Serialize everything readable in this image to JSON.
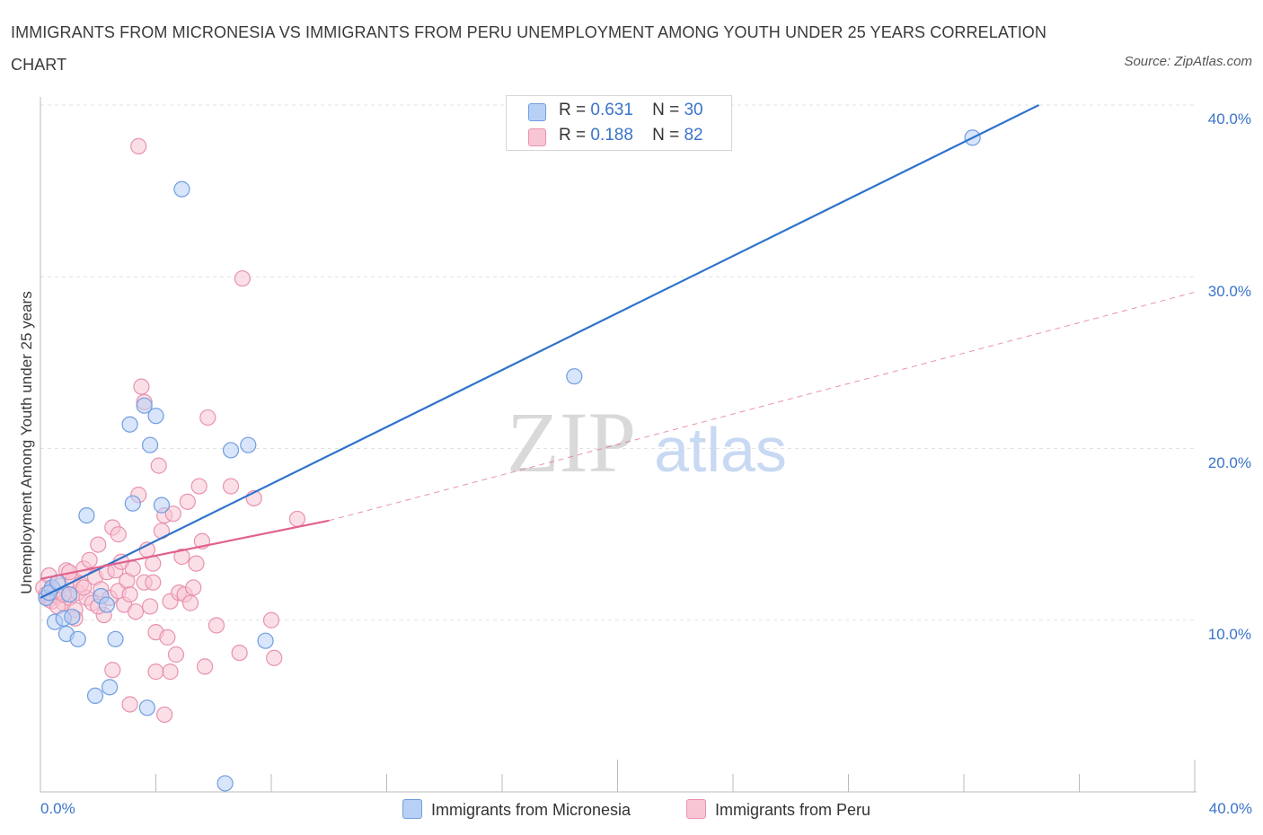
{
  "title": "IMMIGRANTS FROM MICRONESIA VS IMMIGRANTS FROM PERU UNEMPLOYMENT AMONG YOUTH UNDER 25 YEARS CORRELATION CHART",
  "source": "Source: ZipAtlas.com",
  "watermark": {
    "part1": "ZIP",
    "part2": "atlas"
  },
  "legend": {
    "r_label": "R =",
    "n_label": "N =",
    "micronesia": {
      "r": "0.631",
      "n": "30"
    },
    "peru": {
      "r": "0.188",
      "n": "82"
    }
  },
  "colors": {
    "micronesia_fill": "#b8d0f5",
    "micronesia_stroke": "#6f9ee0",
    "micronesia_line": "#2f73cc",
    "peru_fill": "#f8c5d4",
    "peru_stroke": "#e892ad",
    "peru_line": "#e0628d",
    "grid": "#e3e3e3",
    "tick_text": "#3a74c9"
  },
  "chart_data": {
    "type": "scatter",
    "title": "IMMIGRANTS FROM MICRONESIA VS IMMIGRANTS FROM PERU UNEMPLOYMENT AMONG YOUTH UNDER 25 YEARS CORRELATION CHART",
    "xlabel": "",
    "ylabel": "Unemployment Among Youth under 25 years",
    "xlim": [
      0,
      40
    ],
    "ylim": [
      0,
      40
    ],
    "x_tick_labels": [
      "0.0%",
      "40.0%"
    ],
    "y_ticks": [
      10,
      20,
      30,
      40
    ],
    "y_tick_labels": [
      "10.0%",
      "20.0%",
      "30.0%",
      "40.0%"
    ],
    "grid": true,
    "legend_position": "bottom",
    "series": [
      {
        "name": "Immigrants from Micronesia",
        "r": 0.631,
        "n": 30,
        "points": [
          [
            0.2,
            11.3
          ],
          [
            0.4,
            11.9
          ],
          [
            0.5,
            9.9
          ],
          [
            0.8,
            10.1
          ],
          [
            0.9,
            9.2
          ],
          [
            1.0,
            11.5
          ],
          [
            1.1,
            10.2
          ],
          [
            1.3,
            8.9
          ],
          [
            1.6,
            16.1
          ],
          [
            1.9,
            5.6
          ],
          [
            2.1,
            11.4
          ],
          [
            2.3,
            10.9
          ],
          [
            2.4,
            6.1
          ],
          [
            2.6,
            8.9
          ],
          [
            3.1,
            21.4
          ],
          [
            3.2,
            16.8
          ],
          [
            3.6,
            22.5
          ],
          [
            3.7,
            4.9
          ],
          [
            3.8,
            20.2
          ],
          [
            4.0,
            21.9
          ],
          [
            4.2,
            16.7
          ],
          [
            4.9,
            35.1
          ],
          [
            6.4,
            0.5
          ],
          [
            6.6,
            19.9
          ],
          [
            7.2,
            20.2
          ],
          [
            7.8,
            8.8
          ],
          [
            18.5,
            24.2
          ],
          [
            32.3,
            38.1
          ],
          [
            0.3,
            11.6
          ],
          [
            0.6,
            12.2
          ]
        ],
        "trend": {
          "x1": 0.0,
          "y1": 11.3,
          "x2": 34.6,
          "y2": 40.0,
          "style": "solid"
        }
      },
      {
        "name": "Immigrants from Peru",
        "r": 0.188,
        "n": 82,
        "points": [
          [
            0.1,
            11.9
          ],
          [
            0.2,
            11.5
          ],
          [
            0.3,
            11.2
          ],
          [
            0.3,
            12.6
          ],
          [
            0.4,
            11.1
          ],
          [
            0.5,
            11.7
          ],
          [
            0.6,
            11.4
          ],
          [
            0.7,
            12.0
          ],
          [
            0.8,
            11.0
          ],
          [
            0.9,
            12.9
          ],
          [
            1.0,
            11.3
          ],
          [
            1.1,
            12.3
          ],
          [
            1.2,
            10.6
          ],
          [
            1.3,
            11.6
          ],
          [
            1.4,
            12.1
          ],
          [
            1.5,
            13.0
          ],
          [
            1.6,
            11.3
          ],
          [
            1.7,
            13.5
          ],
          [
            1.8,
            11.0
          ],
          [
            1.9,
            12.5
          ],
          [
            2.0,
            14.4
          ],
          [
            2.1,
            11.8
          ],
          [
            2.2,
            10.3
          ],
          [
            2.3,
            12.8
          ],
          [
            2.4,
            11.3
          ],
          [
            2.5,
            15.4
          ],
          [
            2.6,
            12.9
          ],
          [
            2.7,
            11.7
          ],
          [
            2.8,
            13.4
          ],
          [
            2.9,
            10.9
          ],
          [
            3.0,
            12.3
          ],
          [
            3.1,
            11.5
          ],
          [
            3.2,
            13.0
          ],
          [
            3.3,
            10.5
          ],
          [
            3.4,
            17.3
          ],
          [
            3.5,
            23.6
          ],
          [
            3.6,
            12.2
          ],
          [
            3.7,
            14.1
          ],
          [
            3.8,
            10.8
          ],
          [
            3.9,
            13.3
          ],
          [
            4.0,
            9.3
          ],
          [
            4.1,
            19.0
          ],
          [
            4.2,
            15.2
          ],
          [
            4.3,
            16.1
          ],
          [
            4.4,
            9.0
          ],
          [
            4.5,
            11.1
          ],
          [
            4.6,
            16.2
          ],
          [
            4.7,
            8.0
          ],
          [
            4.8,
            11.6
          ],
          [
            4.9,
            13.7
          ],
          [
            5.0,
            11.5
          ],
          [
            5.1,
            16.9
          ],
          [
            5.2,
            11.0
          ],
          [
            5.4,
            13.3
          ],
          [
            5.5,
            17.8
          ],
          [
            5.6,
            14.6
          ],
          [
            5.7,
            7.3
          ],
          [
            5.8,
            21.8
          ],
          [
            6.1,
            9.7
          ],
          [
            6.6,
            17.8
          ],
          [
            6.9,
            8.1
          ],
          [
            7.0,
            29.9
          ],
          [
            7.4,
            17.1
          ],
          [
            8.0,
            10.0
          ],
          [
            8.1,
            7.8
          ],
          [
            8.9,
            15.9
          ],
          [
            3.4,
            37.6
          ],
          [
            3.6,
            22.7
          ],
          [
            2.5,
            7.1
          ],
          [
            3.1,
            5.1
          ],
          [
            4.3,
            4.5
          ],
          [
            4.0,
            7.0
          ],
          [
            4.5,
            7.0
          ],
          [
            1.0,
            12.8
          ],
          [
            0.6,
            10.8
          ],
          [
            2.7,
            15.0
          ],
          [
            3.9,
            12.2
          ],
          [
            5.3,
            11.9
          ],
          [
            2.0,
            10.8
          ],
          [
            1.5,
            11.9
          ],
          [
            1.2,
            10.1
          ],
          [
            0.8,
            11.5
          ]
        ],
        "trend": {
          "x1": 0.0,
          "y1": 12.4,
          "x2": 10.0,
          "y2": 15.8,
          "style": "solid"
        },
        "trend_extension": {
          "x1": 10.0,
          "y1": 15.8,
          "x2": 40.0,
          "y2": 29.1,
          "style": "dashed"
        }
      }
    ]
  },
  "x_ticks": {
    "left": "0.0%",
    "right": "40.0%"
  },
  "y_ticks": [
    "10.0%",
    "20.0%",
    "30.0%",
    "40.0%"
  ]
}
